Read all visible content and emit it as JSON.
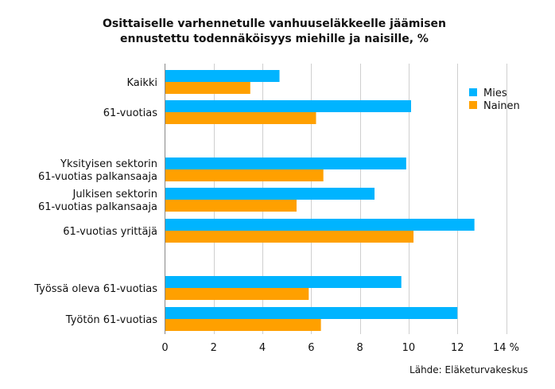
{
  "chart_data": {
    "type": "bar",
    "orientation": "horizontal",
    "title": [
      "Osittaiselle varhennetulle vanhuuseläkkeelle jäämisen",
      "ennustettu todennäköisyys miehille ja naisille, %"
    ],
    "categories": [
      [
        "Kaikki"
      ],
      [
        "61-vuotias"
      ],
      [
        "Yksityisen sektorin",
        "61-vuotias palkansaaja"
      ],
      [
        "Julkisen sektorin",
        "61-vuotias palkansaaja"
      ],
      [
        "61-vuotias yrittäjä"
      ],
      [
        "Työssä oleva 61-vuotias"
      ],
      [
        "Työtön 61-vuotias"
      ]
    ],
    "series": [
      {
        "name": "Mies",
        "color": "#00B4FF",
        "values": [
          4.7,
          10.1,
          9.9,
          8.6,
          12.7,
          9.7,
          12.0
        ]
      },
      {
        "name": "Nainen",
        "color": "#FFA000",
        "values": [
          3.5,
          6.2,
          6.5,
          5.4,
          10.2,
          5.9,
          6.4
        ]
      }
    ],
    "xlim": [
      0,
      14
    ],
    "xticks": [
      "0",
      "2",
      "4",
      "6",
      "8",
      "10",
      "12",
      "14 %"
    ],
    "grid": true,
    "legend_position": "top-right",
    "source": "Lähde: Eläketurvakeskus"
  }
}
